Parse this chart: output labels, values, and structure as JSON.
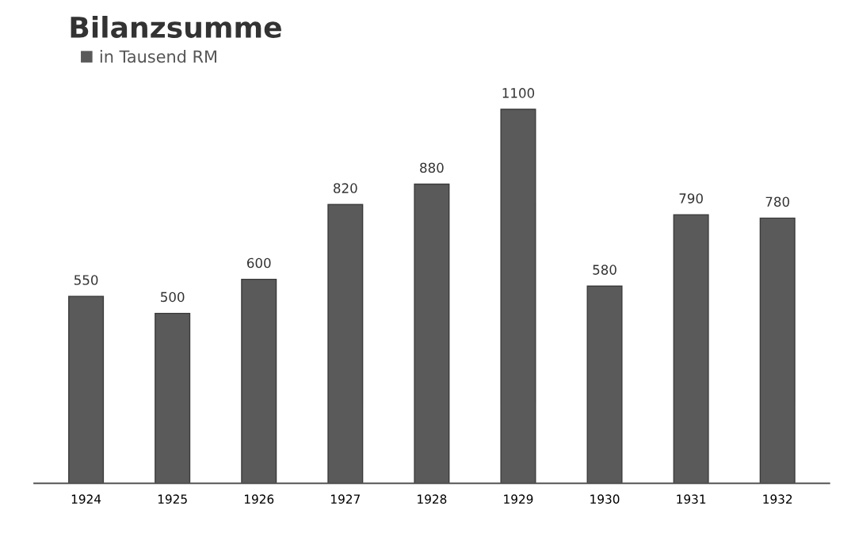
{
  "chart_data": {
    "type": "bar",
    "title": "Bilanzsumme",
    "categories": [
      "1924",
      "1925",
      "1926",
      "1927",
      "1928",
      "1929",
      "1930",
      "1931",
      "1932"
    ],
    "series": [
      {
        "name": "in Tausend RM",
        "color": "#5a5a5a",
        "values": [
          550,
          500,
          600,
          820,
          880,
          1100,
          580,
          790,
          780
        ]
      }
    ],
    "data_labels": true,
    "legend": "top left",
    "tick_labels": "x",
    "grid": false
  }
}
